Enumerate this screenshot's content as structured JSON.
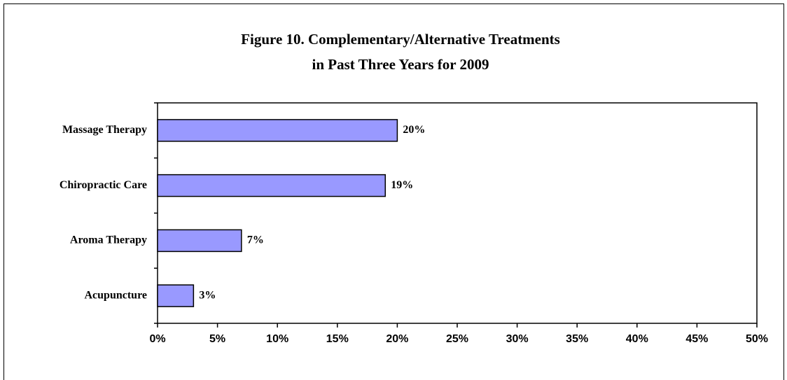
{
  "chart_data": {
    "type": "barh",
    "title": [
      "Figure 10. Complementary/Alternative Treatments",
      "in Past Three Years for 2009"
    ],
    "categories": [
      "Massage Therapy",
      "Chiropractic Care",
      "Aroma Therapy",
      "Acupuncture"
    ],
    "values": [
      20,
      19,
      7,
      3
    ],
    "value_labels": [
      "20%",
      "19%",
      "7%",
      "3%"
    ],
    "color": "#9999ff",
    "xlim": [
      0,
      50
    ],
    "xticks": [
      {
        "value": 0,
        "label": "0%"
      },
      {
        "value": 5,
        "label": "5%"
      },
      {
        "value": 10,
        "label": "10%"
      },
      {
        "value": 15,
        "label": "15%"
      },
      {
        "value": 20,
        "label": "20%"
      },
      {
        "value": 25,
        "label": "25%"
      },
      {
        "value": 30,
        "label": "30%"
      },
      {
        "value": 35,
        "label": "35%"
      },
      {
        "value": 40,
        "label": "40%"
      },
      {
        "value": 45,
        "label": "45%"
      },
      {
        "value": 50,
        "label": "50%"
      }
    ],
    "grid": false
  }
}
